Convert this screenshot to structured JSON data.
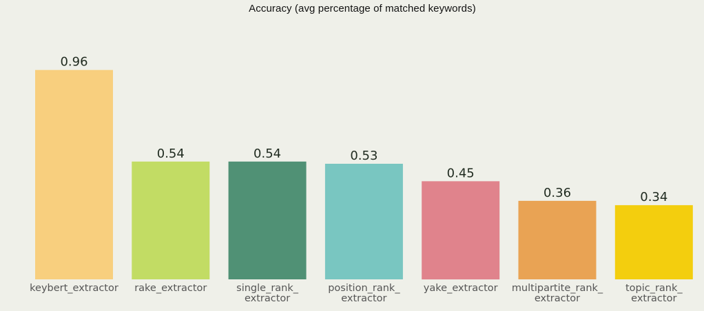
{
  "chart_data": {
    "type": "bar",
    "title": "Accuracy (avg percentage of matched keywords)",
    "xlabel": "",
    "ylabel": "",
    "ylim": [
      0,
      1
    ],
    "grid": false,
    "categories": [
      [
        "keybert_extractor"
      ],
      [
        "rake_extractor"
      ],
      [
        "single_rank_",
        "extractor"
      ],
      [
        "position_rank_",
        "extractor"
      ],
      [
        "yake_extractor"
      ],
      [
        "multipartite_rank_",
        "extractor"
      ],
      [
        "topic_rank_",
        "extractor"
      ]
    ],
    "values": [
      0.96,
      0.54,
      0.54,
      0.53,
      0.45,
      0.36,
      0.34
    ],
    "value_labels": [
      "0.96",
      "0.54",
      "0.54",
      "0.53",
      "0.45",
      "0.36",
      "0.34"
    ],
    "colors": [
      "#f8cf7e",
      "#c2dc64",
      "#509175",
      "#79c6c1",
      "#e0838c",
      "#e9a354",
      "#f3ce0e"
    ]
  }
}
